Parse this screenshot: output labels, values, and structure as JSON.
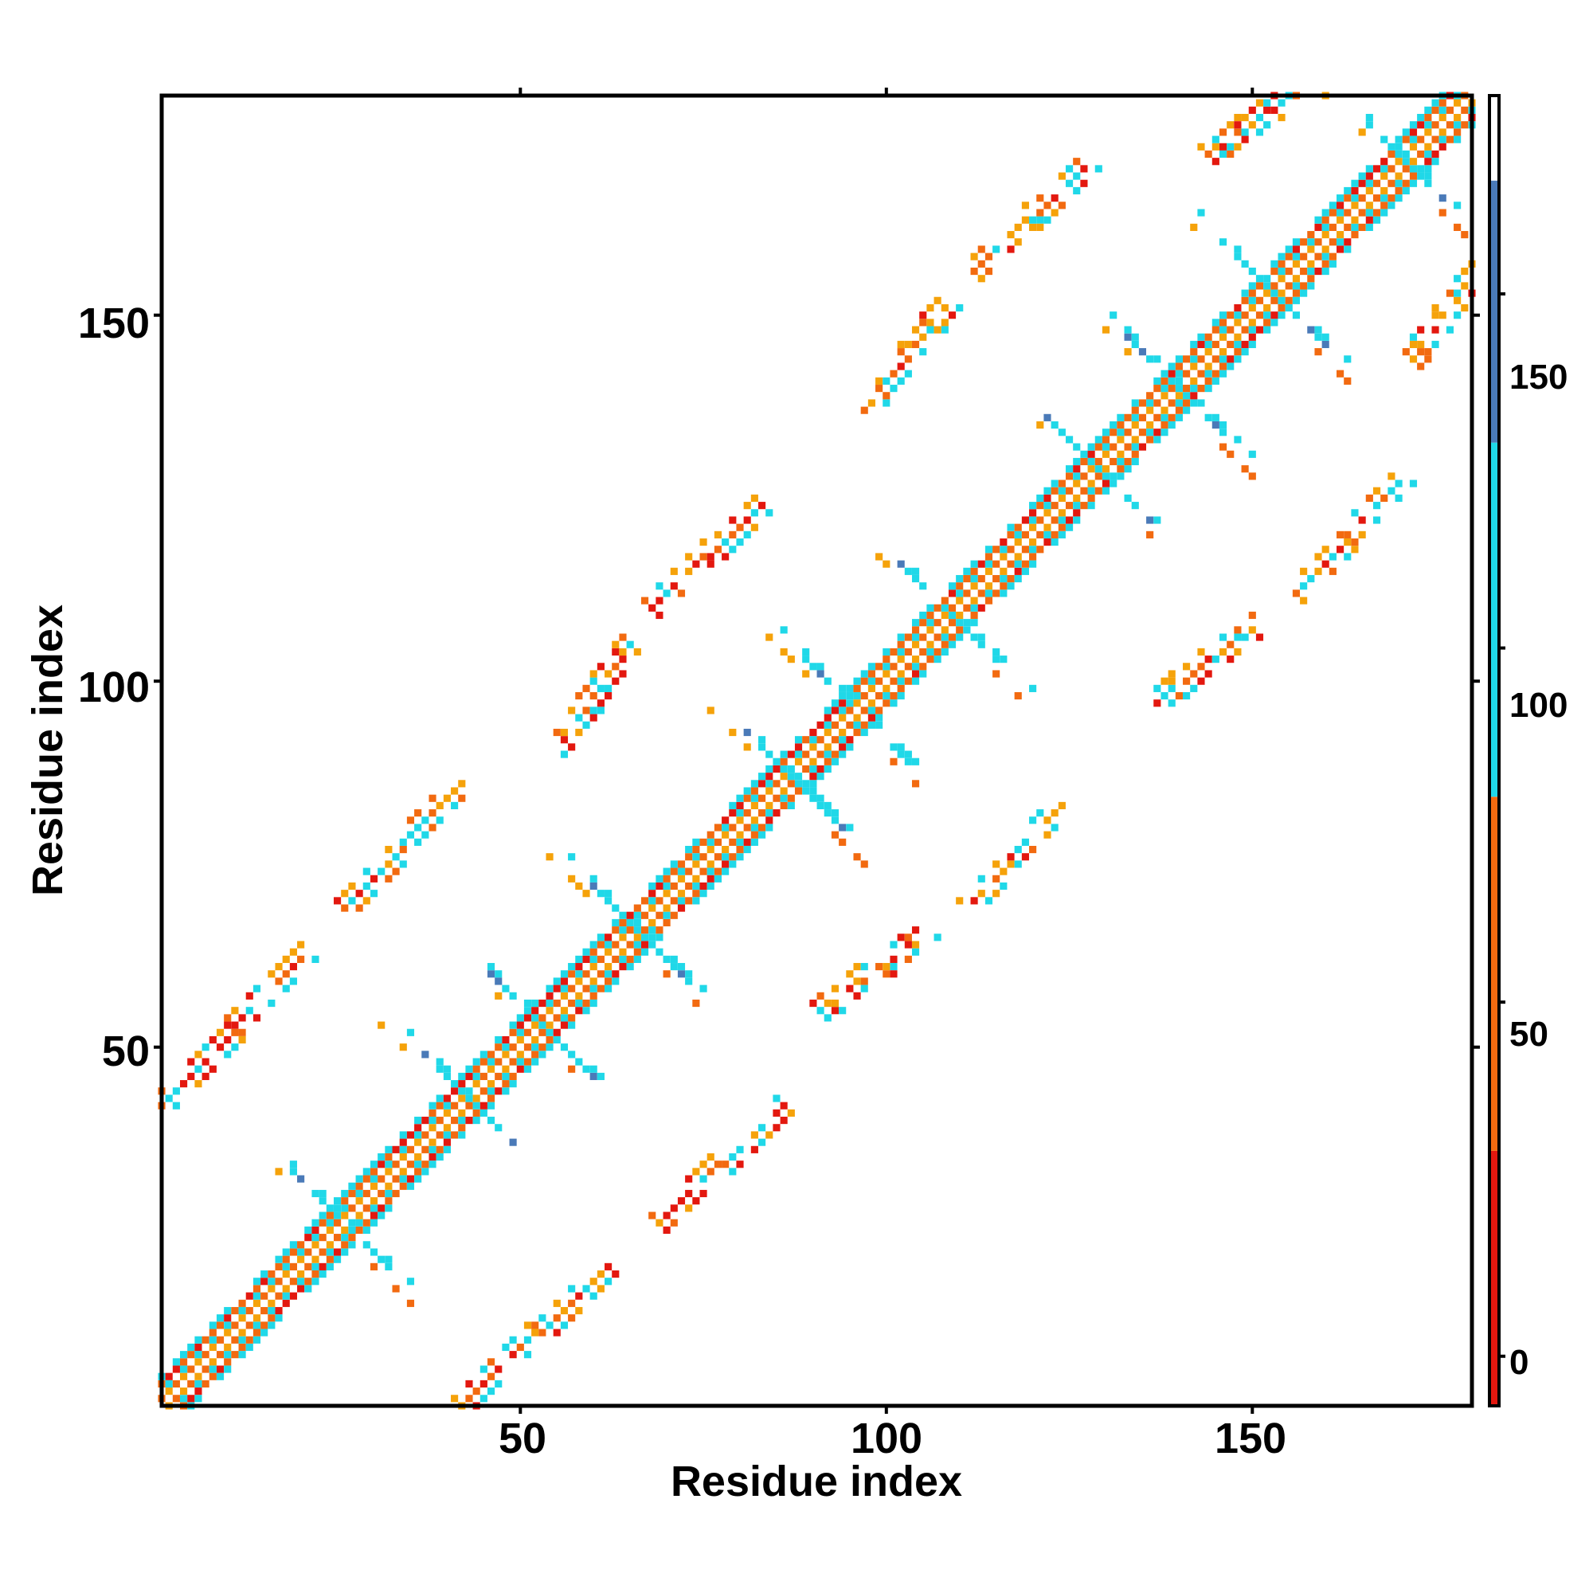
{
  "chart_data": {
    "type": "heatmap",
    "title": "",
    "xlabel": "Residue index",
    "ylabel": "Residue index",
    "xlim": [
      1,
      180
    ],
    "ylim": [
      1,
      180
    ],
    "x_ticks": [
      "50",
      "100",
      "150"
    ],
    "y_ticks": [
      "50",
      "100",
      "150"
    ],
    "colorbar": {
      "ticks": [
        "0",
        "50",
        "100",
        "150"
      ],
      "range": [
        -7,
        178
      ],
      "bands": [
        {
          "from": -7,
          "to": 29,
          "color": "#e3180f"
        },
        {
          "from": 29,
          "to": 79,
          "color": "#f26a10"
        },
        {
          "from": 79,
          "to": 129,
          "color": "#20d8e8"
        },
        {
          "from": 129,
          "to": 166,
          "color": "#4a7ab8"
        },
        {
          "from": 166,
          "to": 178,
          "color": "#ffffff"
        }
      ]
    },
    "palette": {
      "red": "#e3180f",
      "orange": "#f26a10",
      "amber": "#f5a20a",
      "cyan": "#20d8e8",
      "steel": "#4a7ab8"
    },
    "features": {
      "diagonal_band": {
        "from": 1,
        "to": 180,
        "half_width": 4
      },
      "junctions": [
        26,
        43,
        53,
        66,
        87,
        96,
        109,
        129,
        140,
        153,
        171
      ],
      "off_diagonal_streaks": [
        {
          "x_from": 1,
          "x_to": 20,
          "y_from": 42,
          "y_to": 62
        },
        {
          "x_from": 26,
          "x_to": 42,
          "y_from": 69,
          "y_to": 86
        },
        {
          "x_from": 55,
          "x_to": 65,
          "y_from": 91,
          "y_to": 105
        },
        {
          "x_from": 68,
          "x_to": 83,
          "y_from": 110,
          "y_to": 124
        },
        {
          "x_from": 97,
          "x_to": 108,
          "y_from": 137,
          "y_to": 151
        },
        {
          "x_from": 112,
          "x_to": 127,
          "y_from": 156,
          "y_to": 170
        },
        {
          "x_from": 144,
          "x_to": 157,
          "y_from": 172,
          "y_to": 181
        },
        {
          "x_from": 42,
          "x_to": 62,
          "y_from": 1,
          "y_to": 20
        },
        {
          "x_from": 69,
          "x_to": 86,
          "y_from": 26,
          "y_to": 42
        },
        {
          "x_from": 91,
          "x_to": 105,
          "y_from": 55,
          "y_to": 65
        },
        {
          "x_from": 110,
          "x_to": 124,
          "y_from": 68,
          "y_to": 83
        },
        {
          "x_from": 137,
          "x_to": 151,
          "y_from": 97,
          "y_to": 108
        },
        {
          "x_from": 156,
          "x_to": 170,
          "y_from": 112,
          "y_to": 127
        },
        {
          "x_from": 172,
          "x_to": 181,
          "y_from": 144,
          "y_to": 157
        }
      ]
    }
  }
}
